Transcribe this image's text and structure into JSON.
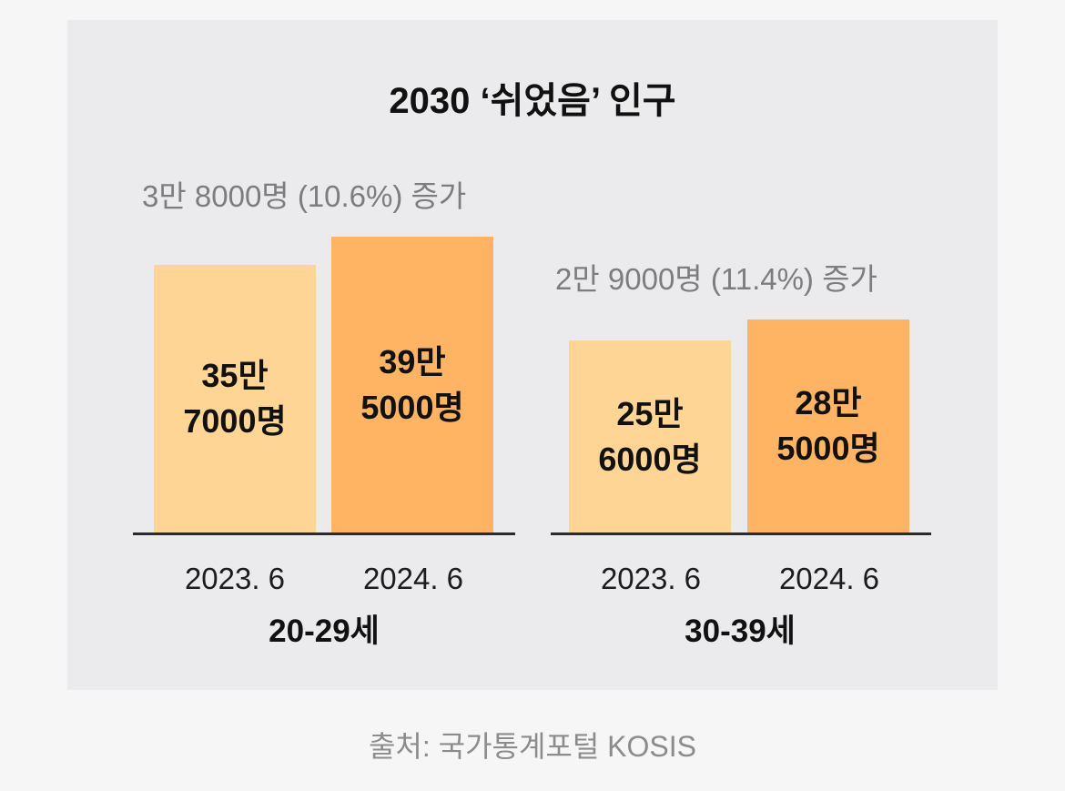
{
  "chart_data": {
    "type": "bar",
    "title": "2030 ‘쉬었음’ 인구",
    "source": "출처: 국가통계포털 KOSIS",
    "colors": {
      "2023.6": "#ffd596",
      "2024.6": "#ffb463"
    },
    "groups": [
      {
        "name": "20-29세",
        "increase": "3만 8000명 (10.6%) 증가",
        "categories": [
          "2023. 6",
          "2024. 6"
        ],
        "values": [
          357000,
          395000
        ],
        "value_labels": [
          "35만\n7000명",
          "39만\n5000명"
        ]
      },
      {
        "name": "30-39세",
        "increase": "2만 9000명 (11.4%) 증가",
        "categories": [
          "2023. 6",
          "2024. 6"
        ],
        "values": [
          256000,
          285000
        ],
        "value_labels": [
          "25만\n6000명",
          "28만\n5000명"
        ]
      }
    ]
  }
}
